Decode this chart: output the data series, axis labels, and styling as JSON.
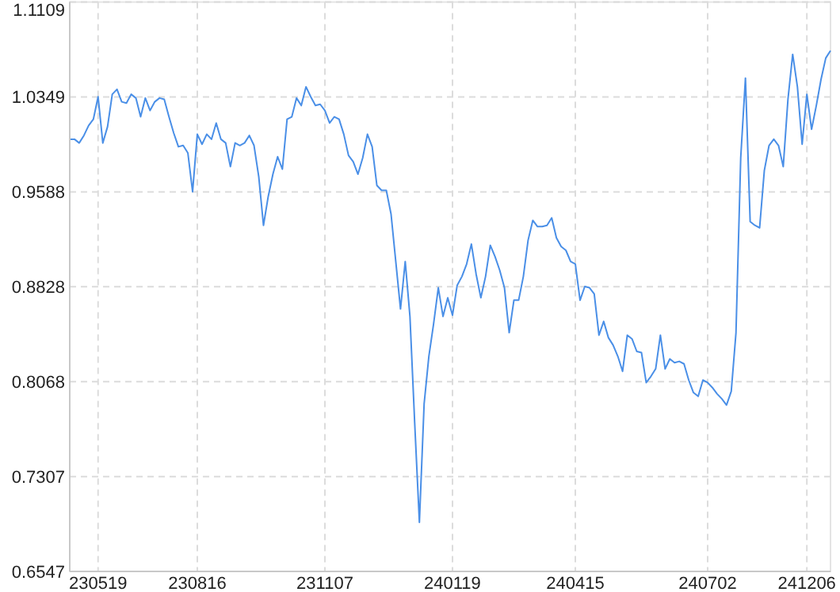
{
  "chart_data": {
    "type": "line",
    "categories": [
      null,
      null,
      null,
      null,
      null,
      null,
      "230519",
      null,
      null,
      null,
      null,
      null,
      null,
      null,
      null,
      null,
      null,
      null,
      null,
      null,
      null,
      null,
      null,
      null,
      null,
      null,
      null,
      "230816",
      null,
      null,
      null,
      null,
      null,
      null,
      null,
      null,
      null,
      null,
      null,
      null,
      null,
      null,
      null,
      null,
      null,
      null,
      null,
      null,
      null,
      null,
      null,
      null,
      null,
      null,
      "231107",
      null,
      null,
      null,
      null,
      null,
      null,
      null,
      null,
      null,
      null,
      null,
      null,
      null,
      null,
      null,
      null,
      null,
      null,
      null,
      null,
      null,
      null,
      null,
      null,
      null,
      null,
      "240119",
      null,
      null,
      null,
      null,
      null,
      null,
      null,
      null,
      null,
      null,
      null,
      null,
      null,
      null,
      null,
      null,
      null,
      null,
      null,
      null,
      null,
      null,
      null,
      null,
      null,
      "240415",
      null,
      null,
      null,
      null,
      null,
      null,
      null,
      null,
      null,
      null,
      null,
      null,
      null,
      null,
      null,
      null,
      null,
      null,
      null,
      null,
      null,
      null,
      null,
      null,
      null,
      null,
      null,
      "240702",
      null,
      null,
      null,
      null,
      null,
      null,
      null,
      null,
      null,
      null,
      null,
      null,
      null,
      null,
      null,
      null,
      null,
      null,
      null,
      null,
      "241206",
      null,
      null,
      null,
      null,
      null
    ],
    "series": [
      {
        "color": "#4a8fe7",
        "values": [
          1.001,
          1.001,
          0.998,
          1.004,
          1.012,
          1.017,
          1.035,
          0.998,
          1.011,
          1.037,
          1.041,
          1.031,
          1.03,
          1.037,
          1.034,
          1.019,
          1.034,
          1.024,
          1.031,
          1.034,
          1.033,
          1.019,
          1.006,
          0.995,
          0.996,
          0.99,
          0.959,
          1.005,
          0.997,
          1.005,
          1.001,
          1.014,
          1.001,
          0.998,
          0.979,
          0.998,
          0.996,
          0.998,
          1.004,
          0.996,
          0.971,
          0.932,
          0.955,
          0.973,
          0.987,
          0.977,
          1.017,
          1.019,
          1.034,
          1.028,
          1.043,
          1.035,
          1.028,
          1.029,
          1.024,
          1.014,
          1.019,
          1.017,
          1.005,
          0.988,
          0.983,
          0.973,
          0.986,
          1.005,
          0.995,
          0.964,
          0.96,
          0.96,
          0.941,
          0.903,
          0.865,
          0.903,
          0.859,
          0.774,
          0.694,
          0.789,
          0.827,
          0.853,
          0.882,
          0.859,
          0.874,
          0.86,
          0.884,
          0.891,
          0.901,
          0.917,
          0.893,
          0.874,
          0.891,
          0.916,
          0.907,
          0.896,
          0.882,
          0.846,
          0.872,
          0.872,
          0.891,
          0.92,
          0.936,
          0.931,
          0.931,
          0.932,
          0.938,
          0.922,
          0.915,
          0.912,
          0.903,
          0.901,
          0.872,
          0.883,
          0.882,
          0.877,
          0.844,
          0.855,
          0.842,
          0.836,
          0.827,
          0.815,
          0.844,
          0.841,
          0.831,
          0.83,
          0.806,
          0.811,
          0.817,
          0.844,
          0.817,
          0.825,
          0.822,
          0.823,
          0.821,
          0.808,
          0.798,
          0.795,
          0.808,
          0.806,
          0.802,
          0.797,
          0.793,
          0.788,
          0.799,
          0.846,
          0.986,
          1.05,
          0.935,
          0.932,
          0.93,
          0.976,
          0.996,
          1.001,
          0.996,
          0.979,
          1.033,
          1.069,
          1.043,
          0.997,
          1.037,
          1.009,
          1.028,
          1.049,
          1.066,
          1.072
        ]
      }
    ],
    "ylim": [
      0.6547,
      1.1109
    ],
    "yticks": [
      0.6547,
      0.7307,
      0.8068,
      0.8828,
      0.9588,
      1.0349,
      1.1109
    ],
    "grid": true
  }
}
